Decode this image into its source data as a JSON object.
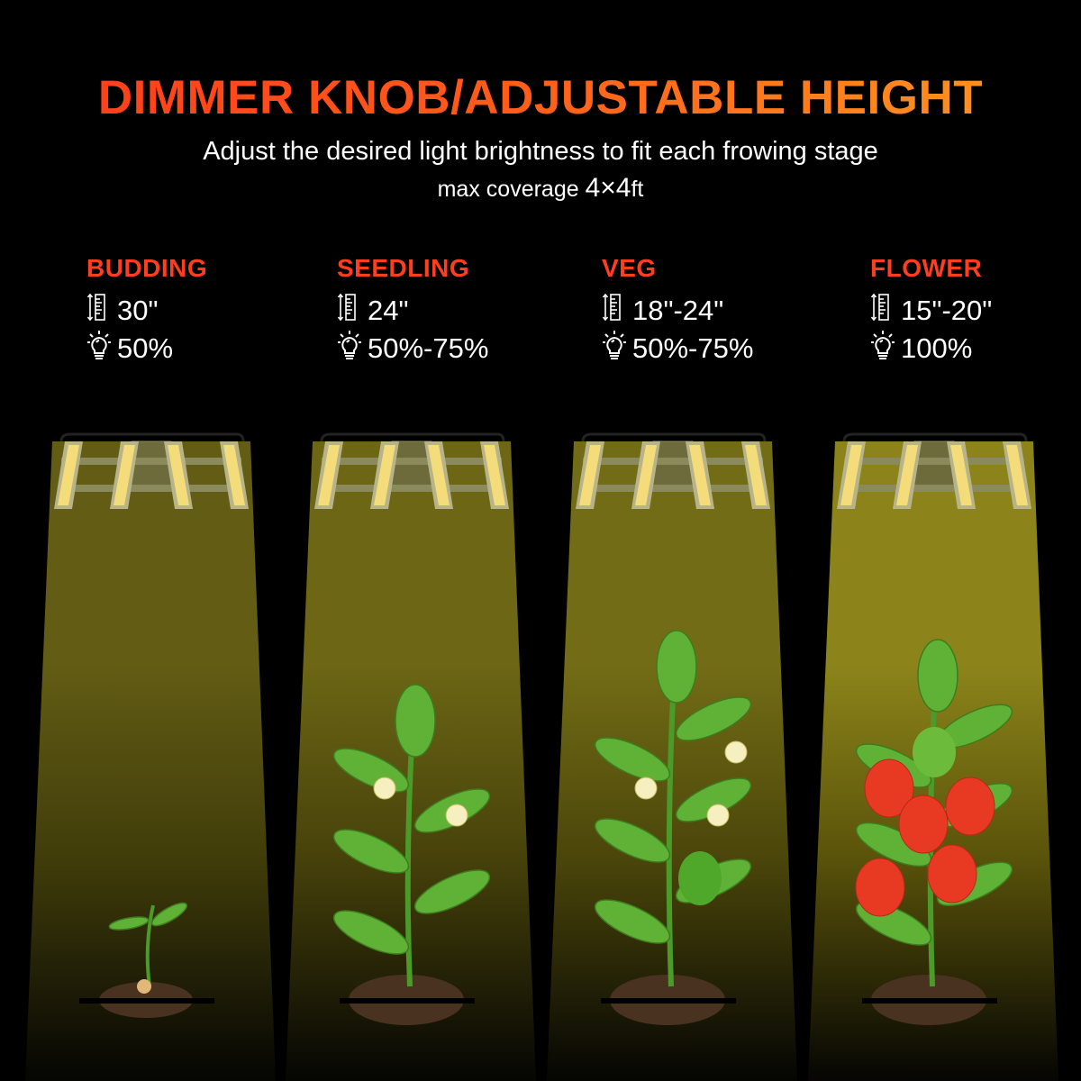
{
  "header": {
    "title": "DIMMER KNOB/ADJUSTABLE HEIGHT",
    "subtitle": "Adjust the desired light brightness to fit each frowing stage",
    "coverage_prefix": "max coverage ",
    "coverage_value": "4×4",
    "coverage_unit": "ft"
  },
  "icons": {
    "height": "ruler-height-icon",
    "brightness": "light-bulb-icon"
  },
  "colors": {
    "stage_label": "#ff3d1f",
    "title_start": "#ff3a1a",
    "title_end": "#ff9a1f"
  },
  "stages": [
    {
      "name": "BUDDING",
      "height": "30\"",
      "brightness": "50%",
      "brightness_level": 50
    },
    {
      "name": "SEEDLING",
      "height": "24\"",
      "brightness": "50%-75%",
      "brightness_level": 62
    },
    {
      "name": "VEG",
      "height": "18\"-24\"",
      "brightness": "50%-75%",
      "brightness_level": 70
    },
    {
      "name": "FLOWER",
      "height": "15\"-20\"",
      "brightness": "100%",
      "brightness_level": 100
    }
  ]
}
